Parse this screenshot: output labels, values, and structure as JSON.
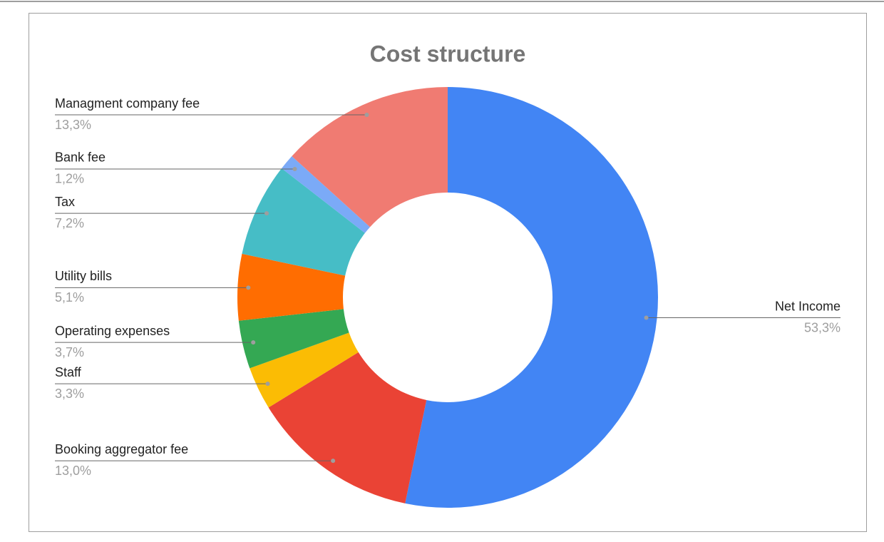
{
  "chart_data": {
    "type": "pie",
    "title": "Cost structure",
    "categories": [
      "Net Income",
      "Booking aggregator fee",
      "Staff",
      "Operating expenses",
      "Utility bills",
      "Tax",
      "Bank fee",
      "Managment company fee"
    ],
    "values": [
      53.3,
      13.0,
      3.3,
      3.7,
      5.1,
      7.2,
      1.2,
      13.3
    ],
    "value_labels": [
      "53,3%",
      "13,0%",
      "3,3%",
      "3,7%",
      "5,1%",
      "7,2%",
      "1,2%",
      "13,3%"
    ],
    "colors": [
      "#4285f4",
      "#ea4335",
      "#fbbc04",
      "#34a853",
      "#ff6d01",
      "#46bdc6",
      "#7baaf7",
      "#f07b72"
    ]
  }
}
